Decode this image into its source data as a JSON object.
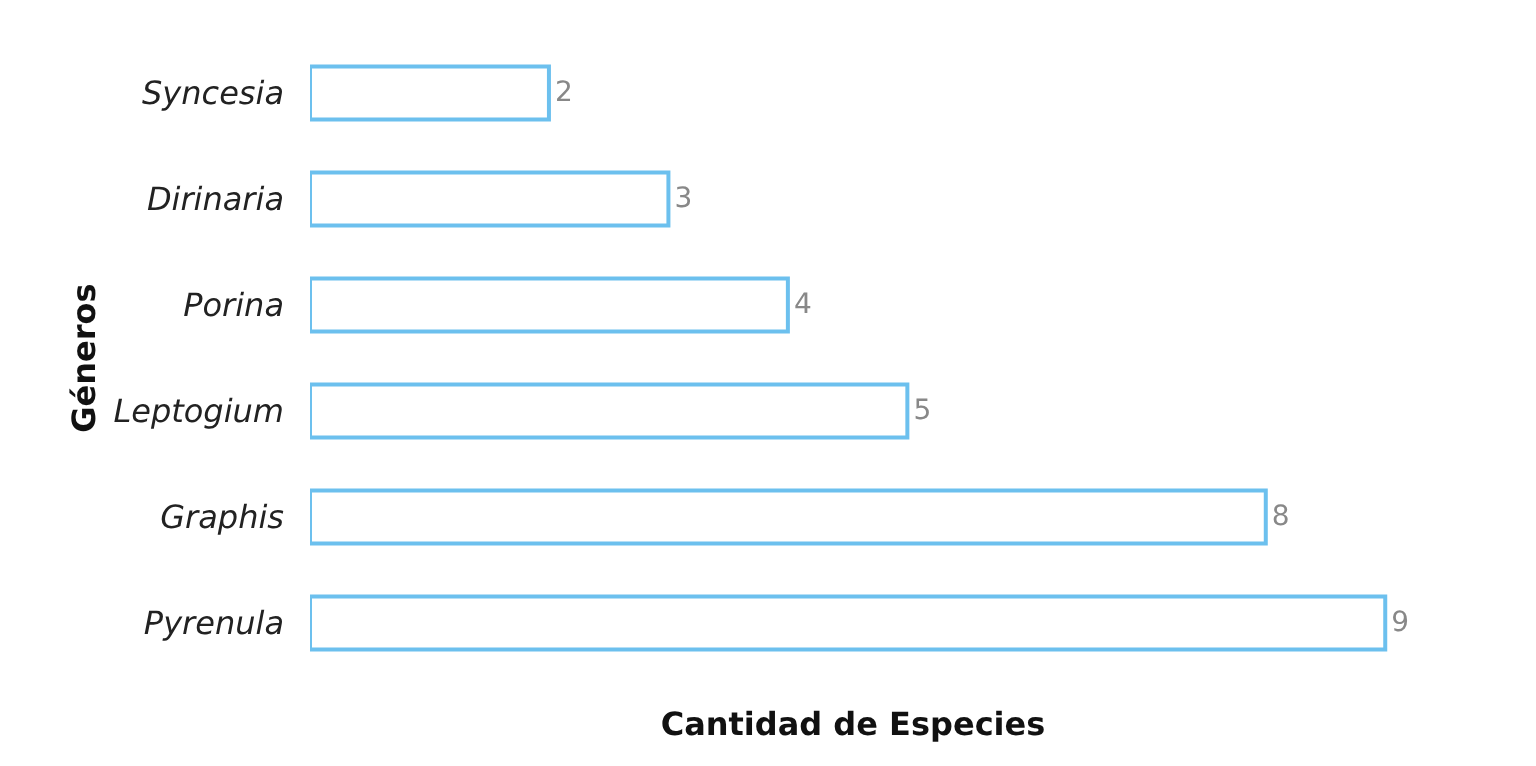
{
  "chart_data": {
    "type": "bar",
    "orientation": "horizontal",
    "xlabel": "Cantidad de Especies",
    "ylabel": "Géneros",
    "categories": [
      "Syncesia",
      "Dirinaria",
      "Porina",
      "Leptogium",
      "Graphis",
      "Pyrenula"
    ],
    "values": [
      2,
      3,
      4,
      5,
      8,
      9
    ],
    "color": "#6cc0ee",
    "data_labels": true
  }
}
